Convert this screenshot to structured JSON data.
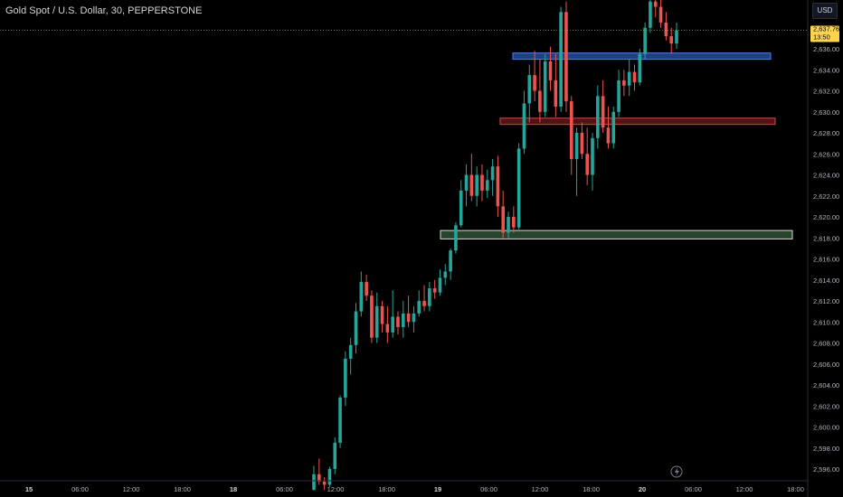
{
  "header": {
    "title": "Gold Spot / U.S. Dollar, 30, PEPPERSTONE",
    "currency": "USD"
  },
  "colors": {
    "background": "#000000",
    "up": "#26a69a",
    "down": "#ef5350",
    "axis_text": "#b2b5be",
    "last_price": "#ffd54f",
    "ema_line": "#8bc34a"
  },
  "price_label": {
    "price": "2,637.76",
    "countdown": "13:50"
  },
  "chart_data": {
    "type": "candlestick",
    "title": "Gold Spot / U.S. Dollar, 30, PEPPERSTONE",
    "ylim": [
      2595,
      2642
    ],
    "y_ticks": [
      "2,596.00",
      "2,598.00",
      "2,600.00",
      "2,602.00",
      "2,604.00",
      "2,606.00",
      "2,608.00",
      "2,610.00",
      "2,612.00",
      "2,614.00",
      "2,616.00",
      "2,618.00",
      "2,620.00",
      "2,622.00",
      "2,624.00",
      "2,626.00",
      "2,628.00",
      "2,630.00",
      "2,632.00",
      "2,634.00",
      "2,636.00"
    ],
    "x_ticks": [
      "15",
      "06:00",
      "12:00",
      "18:00",
      "18",
      "06:00",
      "12:00",
      "18:00",
      "19",
      "06:00",
      "12:00",
      "18:00",
      "20",
      "06:00",
      "12:00",
      "18:00"
    ],
    "last_price": 2637.76,
    "zones": [
      {
        "color": "blue",
        "low": 2635.0,
        "high": 2635.6
      },
      {
        "color": "red",
        "low": 2628.8,
        "high": 2629.4
      },
      {
        "color": "green",
        "low": 2617.9,
        "high": 2618.7
      }
    ],
    "candles": [
      [
        2594.0,
        2596.3,
        2594.0,
        2595.5
      ],
      [
        2595.5,
        2597.0,
        2594.5,
        2594.8
      ],
      [
        2594.8,
        2595.2,
        2594.0,
        2594.5
      ],
      [
        2594.5,
        2596.2,
        2594.3,
        2596.0
      ],
      [
        2596.0,
        2599.0,
        2595.5,
        2598.5
      ],
      [
        2598.5,
        2603.0,
        2598.0,
        2602.8
      ],
      [
        2602.8,
        2607.2,
        2602.0,
        2606.5
      ],
      [
        2606.5,
        2608.5,
        2605.0,
        2607.8
      ],
      [
        2607.8,
        2611.8,
        2607.0,
        2611.0
      ],
      [
        2611.0,
        2614.8,
        2610.5,
        2613.8
      ],
      [
        2613.8,
        2614.5,
        2612.0,
        2612.5
      ],
      [
        2612.5,
        2613.0,
        2608.0,
        2608.5
      ],
      [
        2608.5,
        2612.8,
        2608.0,
        2611.5
      ],
      [
        2611.5,
        2612.0,
        2609.0,
        2609.8
      ],
      [
        2609.8,
        2611.5,
        2608.0,
        2609.0
      ],
      [
        2609.0,
        2613.0,
        2608.5,
        2610.5
      ],
      [
        2610.5,
        2611.0,
        2608.8,
        2609.5
      ],
      [
        2609.5,
        2612.0,
        2608.5,
        2610.8
      ],
      [
        2610.8,
        2612.5,
        2609.5,
        2610.0
      ],
      [
        2610.0,
        2611.5,
        2609.0,
        2610.8
      ],
      [
        2610.8,
        2613.0,
        2610.5,
        2612.0
      ],
      [
        2612.0,
        2613.5,
        2611.0,
        2611.5
      ],
      [
        2611.5,
        2613.8,
        2611.0,
        2613.2
      ],
      [
        2613.2,
        2614.0,
        2612.2,
        2612.8
      ],
      [
        2612.8,
        2615.0,
        2612.5,
        2614.2
      ],
      [
        2614.2,
        2615.5,
        2613.5,
        2614.8
      ],
      [
        2614.8,
        2617.0,
        2614.0,
        2616.8
      ],
      [
        2616.8,
        2619.5,
        2616.5,
        2619.2
      ],
      [
        2619.2,
        2623.5,
        2619.0,
        2622.5
      ],
      [
        2622.5,
        2625.0,
        2621.0,
        2624.0
      ],
      [
        2624.0,
        2626.0,
        2621.5,
        2622.0
      ],
      [
        2622.0,
        2624.8,
        2621.0,
        2624.0
      ],
      [
        2624.0,
        2625.0,
        2621.5,
        2622.5
      ],
      [
        2622.5,
        2624.5,
        2621.8,
        2623.5
      ],
      [
        2623.5,
        2625.5,
        2622.0,
        2624.8
      ],
      [
        2624.8,
        2625.8,
        2620.0,
        2621.0
      ],
      [
        2621.0,
        2622.5,
        2618.0,
        2618.5
      ],
      [
        2618.5,
        2620.5,
        2618.0,
        2620.0
      ],
      [
        2620.0,
        2621.0,
        2618.5,
        2619.0
      ],
      [
        2619.0,
        2627.0,
        2618.8,
        2626.5
      ],
      [
        2626.5,
        2632.0,
        2626.0,
        2630.8
      ],
      [
        2630.8,
        2634.5,
        2629.0,
        2633.5
      ],
      [
        2633.5,
        2635.8,
        2631.0,
        2632.0
      ],
      [
        2632.0,
        2635.0,
        2629.0,
        2630.0
      ],
      [
        2630.0,
        2635.5,
        2629.5,
        2634.8
      ],
      [
        2634.8,
        2636.2,
        2632.0,
        2633.0
      ],
      [
        2633.0,
        2635.5,
        2629.5,
        2630.5
      ],
      [
        2630.5,
        2640.0,
        2630.0,
        2639.5
      ],
      [
        2639.5,
        2640.5,
        2630.0,
        2631.0
      ],
      [
        2631.0,
        2631.5,
        2624.0,
        2625.5
      ],
      [
        2625.5,
        2628.5,
        2622.0,
        2628.0
      ],
      [
        2628.0,
        2629.0,
        2625.5,
        2626.0
      ],
      [
        2626.0,
        2628.5,
        2623.0,
        2624.0
      ],
      [
        2624.0,
        2628.0,
        2622.5,
        2627.5
      ],
      [
        2627.5,
        2632.5,
        2626.5,
        2631.5
      ],
      [
        2631.5,
        2633.0,
        2628.0,
        2628.5
      ],
      [
        2628.5,
        2630.5,
        2626.5,
        2627.0
      ],
      [
        2627.0,
        2630.5,
        2626.5,
        2630.0
      ],
      [
        2630.0,
        2634.0,
        2629.5,
        2633.0
      ],
      [
        2633.0,
        2634.0,
        2631.5,
        2632.5
      ],
      [
        2632.5,
        2635.0,
        2631.5,
        2633.8
      ],
      [
        2633.8,
        2634.5,
        2632.0,
        2632.8
      ],
      [
        2632.8,
        2636.0,
        2632.5,
        2635.5
      ],
      [
        2635.5,
        2638.5,
        2635.0,
        2638.0
      ],
      [
        2638.0,
        2641.0,
        2637.5,
        2640.5
      ],
      [
        2640.5,
        2641.5,
        2639.0,
        2640.0
      ],
      [
        2640.0,
        2641.0,
        2638.0,
        2638.5
      ],
      [
        2638.5,
        2639.5,
        2636.8,
        2637.2
      ],
      [
        2637.2,
        2638.0,
        2635.5,
        2636.5
      ],
      [
        2636.5,
        2638.5,
        2636.0,
        2637.76
      ]
    ]
  }
}
